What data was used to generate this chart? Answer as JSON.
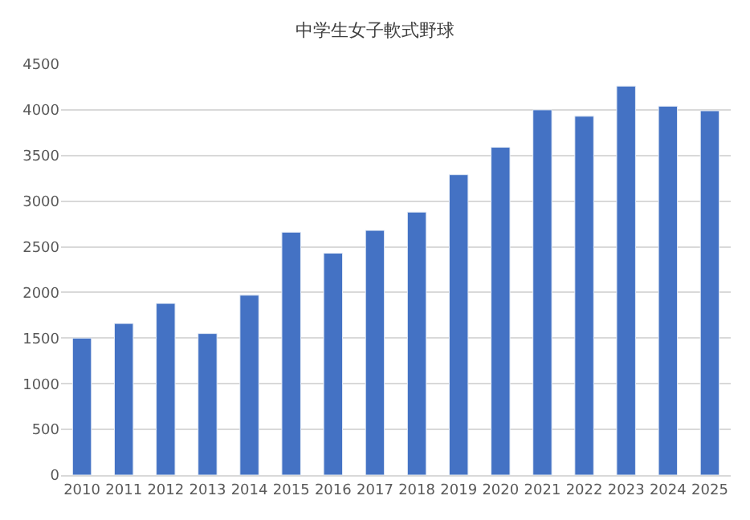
{
  "chart_data": {
    "type": "bar",
    "title": "中学生女子軟式野球",
    "categories": [
      "2010",
      "2011",
      "2012",
      "2013",
      "2014",
      "2015",
      "2016",
      "2017",
      "2018",
      "2019",
      "2020",
      "2021",
      "2022",
      "2023",
      "2024",
      "2025"
    ],
    "values": [
      1500,
      1660,
      1880,
      1550,
      1970,
      2660,
      2430,
      2680,
      2880,
      3290,
      3590,
      4000,
      3930,
      4260,
      4040,
      3990
    ],
    "color": "#4472c4",
    "ylim": [
      0,
      4500
    ],
    "yticks": [
      0,
      500,
      1000,
      1500,
      2000,
      2500,
      3000,
      3500,
      4000,
      4500
    ],
    "grid": "y"
  }
}
